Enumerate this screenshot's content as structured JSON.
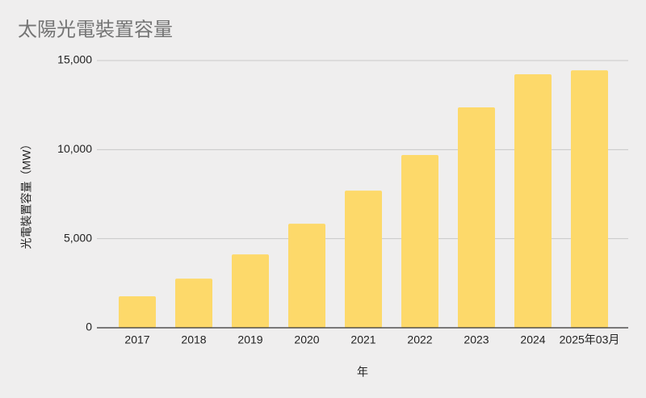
{
  "chart_data": {
    "type": "bar",
    "title": "太陽光電裝置容量",
    "x_label": "年",
    "y_label": "光電裝置容量（MW）",
    "categories": [
      "2017",
      "2018",
      "2019",
      "2020",
      "2021",
      "2022",
      "2023",
      "2024",
      "2025年03月"
    ],
    "values": [
      1770,
      2760,
      4120,
      5840,
      7700,
      9700,
      12370,
      14230,
      14450
    ],
    "color": "#fdd96a",
    "ylim": [
      0,
      15000
    ],
    "yticks": [
      0,
      {
        "value": 5000,
        "label": "5,000"
      },
      {
        "value": 10000,
        "label": "10,000"
      },
      {
        "value": 15000,
        "label": "15,000"
      }
    ],
    "grid": true
  }
}
